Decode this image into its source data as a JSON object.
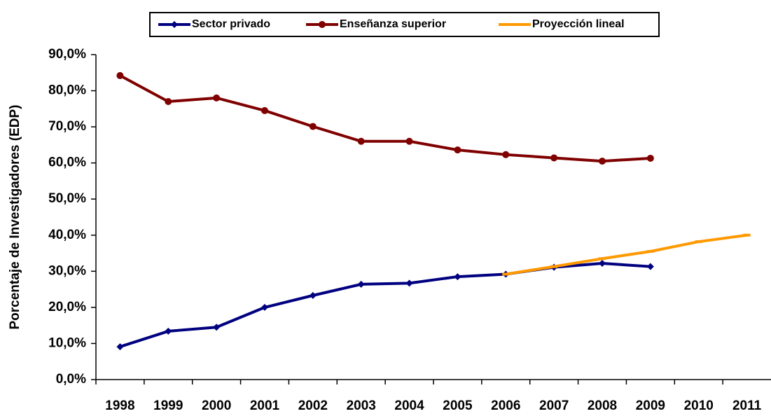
{
  "chart_data": {
    "type": "line",
    "y_label": "Porcentaje de Investigadores (EDP)",
    "categories": [
      "1998",
      "1999",
      "2000",
      "2001",
      "2002",
      "2003",
      "2004",
      "2005",
      "2006",
      "2007",
      "2008",
      "2009",
      "2010",
      "2011"
    ],
    "series": [
      {
        "name": "Sector privado",
        "color": "#000080",
        "marker": "diamond",
        "values": [
          9.1,
          13.4,
          14.5,
          20.0,
          23.3,
          26.4,
          26.7,
          28.5,
          29.2,
          31.1,
          32.2,
          31.3,
          null,
          null
        ]
      },
      {
        "name": "Enseñanza superior",
        "color": "#800000",
        "marker": "circle",
        "values": [
          84.2,
          77.0,
          78.0,
          74.5,
          70.1,
          66.0,
          66.0,
          63.6,
          62.3,
          61.4,
          60.5,
          61.3,
          null,
          null
        ]
      },
      {
        "name": "Proyección lineal",
        "color": "#ff9900",
        "marker": "dash",
        "values": [
          null,
          null,
          null,
          null,
          null,
          null,
          null,
          null,
          29.2,
          31.3,
          33.5,
          35.5,
          38.2,
          40.0
        ]
      }
    ],
    "ylim": [
      0,
      90
    ],
    "yticks": [
      {
        "value": 0,
        "label": "0,0%"
      },
      {
        "value": 10,
        "label": "10,0%"
      },
      {
        "value": 20,
        "label": "20,0%"
      },
      {
        "value": 30,
        "label": "30,0%"
      },
      {
        "value": 40,
        "label": "40,0%"
      },
      {
        "value": 50,
        "label": "50,0%"
      },
      {
        "value": 60,
        "label": "60,0%"
      },
      {
        "value": 70,
        "label": "70,0%"
      },
      {
        "value": 80,
        "label": "80,0%"
      },
      {
        "value": 90,
        "label": "90,0%"
      }
    ],
    "legend": "top"
  }
}
